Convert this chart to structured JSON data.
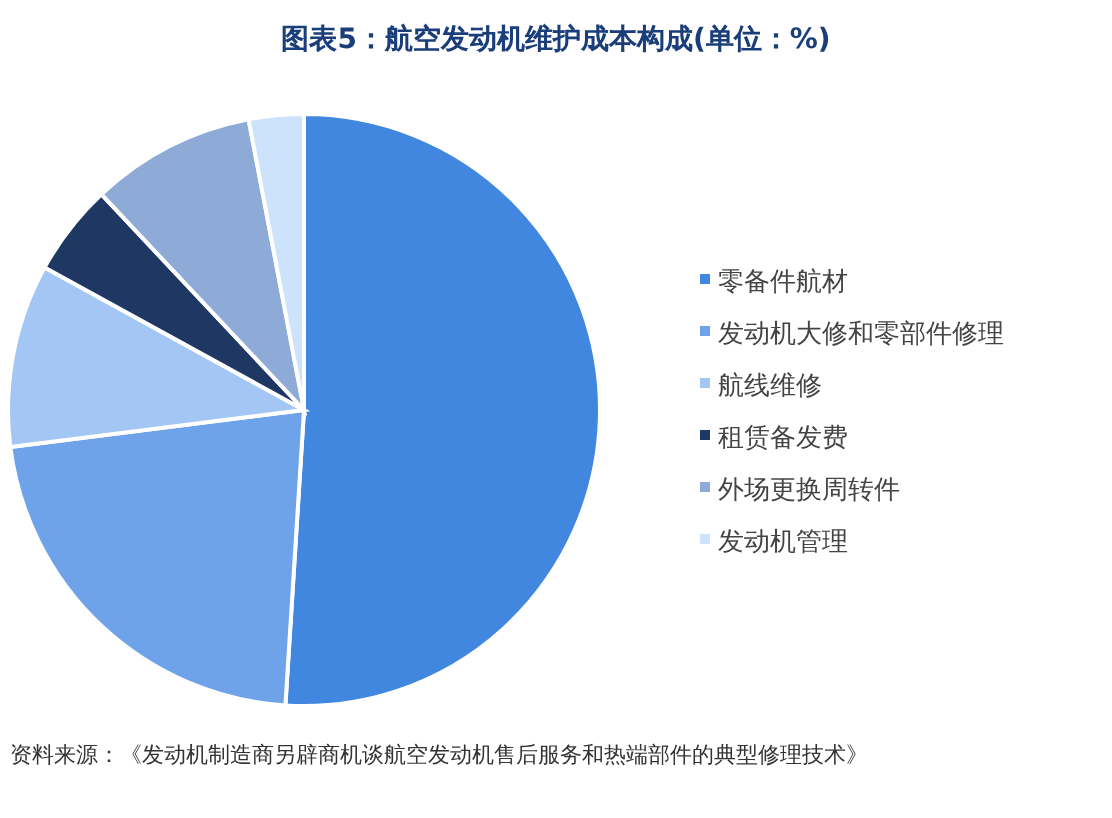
{
  "chart_data": {
    "type": "pie",
    "title": "图表5：航空发动机维护成本构成(单位：%)",
    "categories": [
      "零备件航材",
      "发动机大修和零部件修理",
      "航线维修",
      "租赁备发费",
      "外场更换周转件",
      "发动机管理"
    ],
    "values": [
      51,
      22,
      10,
      5,
      9,
      3
    ],
    "colors": [
      "#4187e0",
      "#6ea3ea",
      "#a3c6f4",
      "#1e3763",
      "#8eaad6",
      "#cde2fb"
    ],
    "legend": "right",
    "annotations": [
      "资料来源：《发动机制造商另辟商机谈航空发动机售后服务和热端部件的典型修理技术》"
    ]
  }
}
